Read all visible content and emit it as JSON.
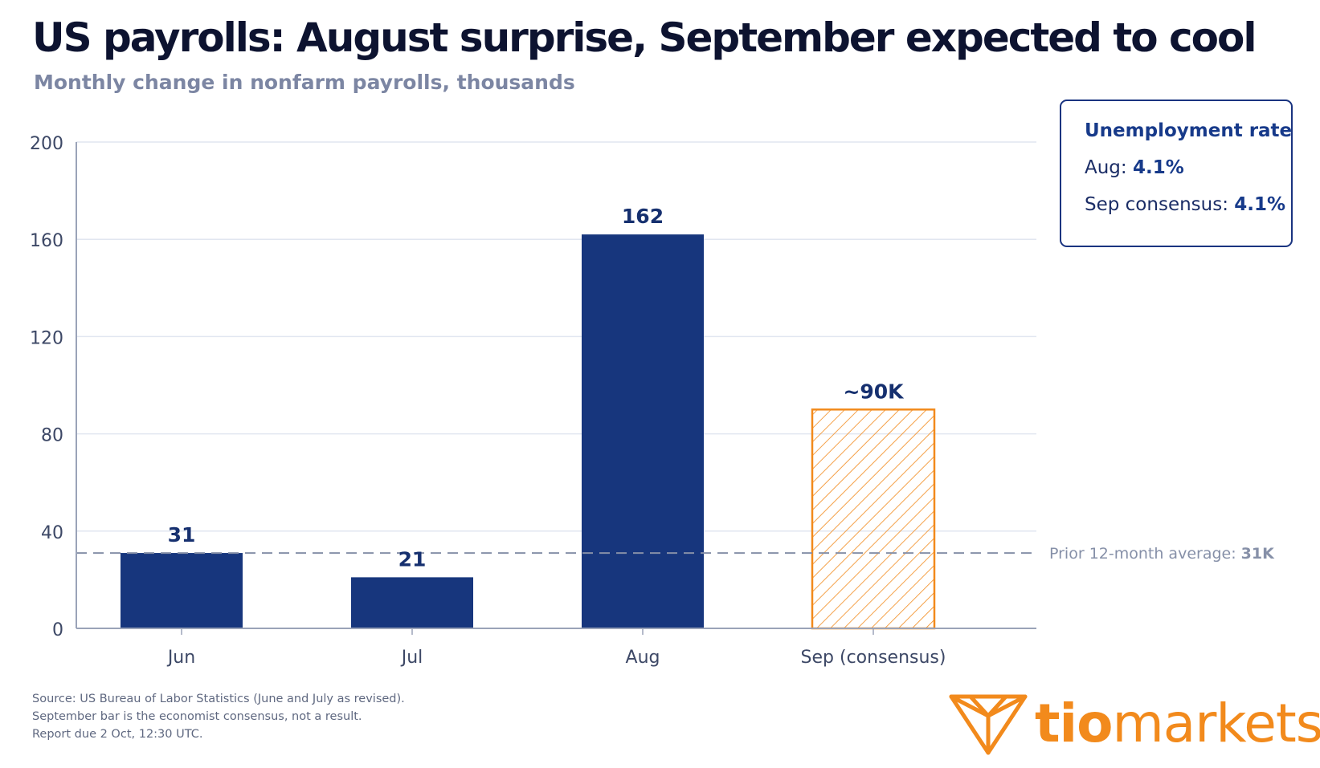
{
  "header": {
    "title": "US payrolls: August surprise, September expected to cool",
    "subtitle": "Monthly change in nonfarm payrolls, thousands"
  },
  "unemployment_box": {
    "title": "Unemployment rate",
    "aug_label": "Aug:",
    "aug_value": "4.1%",
    "sep_label": "Sep consensus:",
    "sep_value": "4.1%"
  },
  "chart_data": {
    "type": "bar",
    "categories": [
      "Jun",
      "Jul",
      "Aug",
      "Sep (consensus)"
    ],
    "values": [
      31,
      21,
      162,
      90
    ],
    "data_labels": [
      "31",
      "21",
      "162",
      "~90K"
    ],
    "forecast_index": 3,
    "ylim": [
      0,
      200
    ],
    "yticks": [
      0,
      40,
      80,
      120,
      160,
      200
    ],
    "grid": true,
    "reference_line": {
      "value": 31,
      "label": "Prior 12-month average:",
      "value_label": "31K",
      "style": "dashed"
    },
    "colors": {
      "actual": "#17367d",
      "consensus": "#f28a1c",
      "grid": "#e1e6f0",
      "axis": "#9aa3b8",
      "reference": "#8690a8"
    }
  },
  "footnote": {
    "line1": "Source: US Bureau of Labor Statistics (June and July as revised).",
    "line2": "September bar is the economist consensus, not a result.",
    "line3": "Report due 2 Oct, 12:30 UTC."
  },
  "logo": {
    "bold": "tio",
    "rest": "markets",
    "color": "#f28a1c"
  }
}
